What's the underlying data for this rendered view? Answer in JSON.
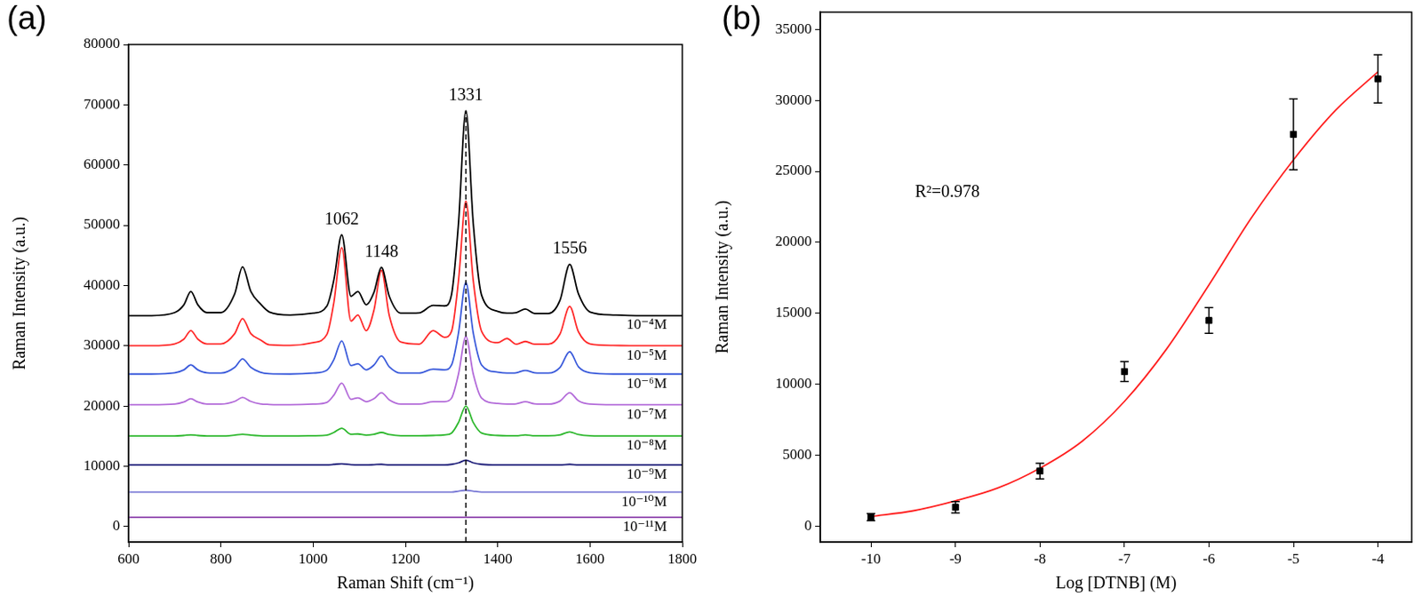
{
  "chart_data": [
    {
      "type": "line",
      "title": "(a)",
      "x_label": "Raman Shift (cm⁻¹)",
      "y_label": "Raman Intensity (a.u.)",
      "x": [
        600,
        650,
        700,
        720,
        735,
        750,
        770,
        800,
        830,
        847,
        865,
        885,
        905,
        950,
        1000,
        1030,
        1045,
        1062,
        1082,
        1097,
        1115,
        1132,
        1148,
        1165,
        1190,
        1230,
        1260,
        1285,
        1300,
        1315,
        1331,
        1347,
        1365,
        1400,
        1420,
        1440,
        1460,
        1480,
        1510,
        1535,
        1556,
        1575,
        1600,
        1650,
        1700,
        1750,
        1800
      ],
      "series": [
        {
          "name": "10⁻⁴M",
          "color": "#000000",
          "values": [
            35000,
            35000,
            35500,
            36800,
            39000,
            36800,
            35500,
            35500,
            38600,
            43100,
            39000,
            37000,
            35600,
            35100,
            35400,
            36600,
            40950,
            48400,
            38200,
            39000,
            36800,
            38900,
            43000,
            38200,
            35400,
            35450,
            36700,
            36600,
            38500,
            50300,
            69000,
            50300,
            38400,
            35700,
            35400,
            35500,
            36100,
            35350,
            35350,
            37550,
            43500,
            38600,
            35600,
            35100,
            35000,
            35000,
            35000
          ]
        },
        {
          "name": "10⁻⁵M",
          "color": "#ff2a2a",
          "values": [
            30000,
            30000,
            30300,
            31100,
            32500,
            31100,
            30300,
            30300,
            32000,
            34500,
            32000,
            31000,
            30150,
            30050,
            30500,
            31900,
            37200,
            46300,
            34100,
            35100,
            32500,
            35950,
            42500,
            35000,
            30600,
            30250,
            32500,
            31400,
            32400,
            40800,
            54000,
            40800,
            32400,
            30500,
            31200,
            30250,
            30700,
            30250,
            30250,
            31950,
            36500,
            32300,
            30300,
            30050,
            30000,
            30000,
            30000
          ]
        },
        {
          "name": "10⁻⁶M",
          "color": "#3b5bdb",
          "values": [
            25300,
            25300,
            25500,
            26000,
            26800,
            26000,
            25500,
            25450,
            26400,
            27800,
            26400,
            25600,
            25350,
            25300,
            25450,
            25950,
            27700,
            30800,
            26700,
            27000,
            26000,
            26800,
            28300,
            26500,
            25450,
            25450,
            26100,
            26000,
            26800,
            32100,
            40500,
            32100,
            26800,
            25600,
            25450,
            25500,
            25900,
            25500,
            25450,
            26400,
            29000,
            26500,
            25500,
            25300,
            25300,
            25300,
            25300
          ]
        },
        {
          "name": "10⁻⁷M",
          "color": "#b36bd9",
          "values": [
            20200,
            20200,
            20300,
            20650,
            21200,
            20650,
            20300,
            20300,
            20750,
            21400,
            20750,
            20350,
            20250,
            20200,
            20300,
            20600,
            21800,
            23800,
            21100,
            21350,
            20700,
            21200,
            22200,
            21000,
            20300,
            20300,
            20700,
            20700,
            21300,
            25300,
            31500,
            25300,
            21300,
            20400,
            20300,
            20350,
            20700,
            20350,
            20300,
            20800,
            22200,
            20850,
            20300,
            20200,
            20200,
            20200,
            20200
          ]
        },
        {
          "name": "10⁻⁸M",
          "color": "#2eb82e",
          "values": [
            15000,
            15000,
            15000,
            15100,
            15200,
            15100,
            15000,
            15000,
            15150,
            15300,
            15150,
            15050,
            15000,
            15000,
            15050,
            15150,
            15600,
            16300,
            15300,
            15350,
            15150,
            15300,
            15600,
            15250,
            15050,
            15050,
            15100,
            15200,
            15500,
            17250,
            20000,
            17250,
            15500,
            15100,
            15050,
            15050,
            15200,
            15050,
            15050,
            15200,
            15700,
            15250,
            15050,
            15000,
            15000,
            15000,
            15000
          ]
        },
        {
          "name": "10⁻⁹M",
          "color": "#1f1f7a",
          "values": [
            10200,
            10200,
            10200,
            10200,
            10200,
            10200,
            10200,
            10200,
            10200,
            10200,
            10200,
            10200,
            10200,
            10200,
            10200,
            10200,
            10300,
            10400,
            10250,
            10200,
            10200,
            10250,
            10300,
            10200,
            10200,
            10200,
            10200,
            10200,
            10300,
            10550,
            11000,
            10550,
            10300,
            10200,
            10200,
            10200,
            10200,
            10200,
            10200,
            10200,
            10300,
            10200,
            10200,
            10200,
            10200,
            10200,
            10200
          ]
        },
        {
          "name": "10⁻¹⁰M",
          "color": "#7b7bd6",
          "values": [
            5700,
            5700,
            5700,
            5700,
            5700,
            5700,
            5700,
            5700,
            5700,
            5700,
            5700,
            5700,
            5700,
            5700,
            5700,
            5700,
            5700,
            5700,
            5700,
            5700,
            5700,
            5700,
            5700,
            5700,
            5700,
            5700,
            5700,
            5700,
            5700,
            5850,
            6000,
            5850,
            5700,
            5700,
            5700,
            5700,
            5700,
            5700,
            5700,
            5700,
            5700,
            5700,
            5700,
            5700,
            5700,
            5700,
            5700
          ]
        },
        {
          "name": "10⁻¹¹M",
          "color": "#8e44ad",
          "values": [
            1500,
            1500,
            1500,
            1500,
            1500,
            1500,
            1500,
            1500,
            1500,
            1500,
            1500,
            1500,
            1500,
            1500,
            1500,
            1500,
            1500,
            1500,
            1500,
            1500,
            1500,
            1500,
            1500,
            1500,
            1500,
            1500,
            1500,
            1500,
            1500,
            1500,
            1500,
            1500,
            1500,
            1500,
            1500,
            1500,
            1500,
            1500,
            1500,
            1500,
            1500,
            1500,
            1500,
            1500,
            1500,
            1500,
            1500
          ]
        }
      ],
      "xlim": [
        600,
        1800
      ],
      "xticks": [
        600,
        800,
        1000,
        1200,
        1400,
        1600,
        1800
      ],
      "ylim": [
        -2600,
        80000
      ],
      "yticks": [
        0,
        10000,
        20000,
        30000,
        40000,
        50000,
        60000,
        70000,
        80000
      ],
      "grid": false,
      "annotations": [
        {
          "text": "1062",
          "x": 1062
        },
        {
          "text": "1148",
          "x": 1148
        },
        {
          "text": "1331",
          "x": 1331,
          "line_style": "dashed"
        },
        {
          "text": "1556",
          "x": 1556
        }
      ]
    },
    {
      "type": "scatter",
      "title": "(b)",
      "x_label": "Log [DTNB] (M)",
      "y_label": "Raman Intensity (a.u.)",
      "series": [
        {
          "type": "scatter",
          "x": [
            -10,
            -9,
            -8,
            -7,
            -6,
            -5,
            -4
          ],
          "values": [
            650,
            1350,
            3900,
            10900,
            14500,
            27600,
            31500
          ],
          "errors": [
            250,
            400,
            550,
            700,
            900,
            2500,
            1700
          ],
          "color": "#000000",
          "marker": "square"
        },
        {
          "type": "line",
          "x": [
            -10,
            -9.5,
            -9,
            -8.5,
            -8,
            -7.5,
            -7,
            -6.5,
            -6,
            -5.5,
            -5,
            -4.5,
            -4
          ],
          "values": [
            700,
            1100,
            1800,
            2700,
            4100,
            6000,
            8800,
            12500,
            17000,
            21700,
            25800,
            29300,
            32000
          ],
          "color": "#ff2020"
        }
      ],
      "xlim": [
        -10.6,
        -3.6
      ],
      "xticks": [
        -10,
        -9,
        -8,
        -7,
        -6,
        -5,
        -4
      ],
      "ylim": [
        -1100,
        36200
      ],
      "yticks": [
        0,
        5000,
        10000,
        15000,
        20000,
        25000,
        30000,
        35000
      ],
      "grid": false,
      "annotations": [
        {
          "text": "R²=0.978"
        }
      ]
    }
  ]
}
